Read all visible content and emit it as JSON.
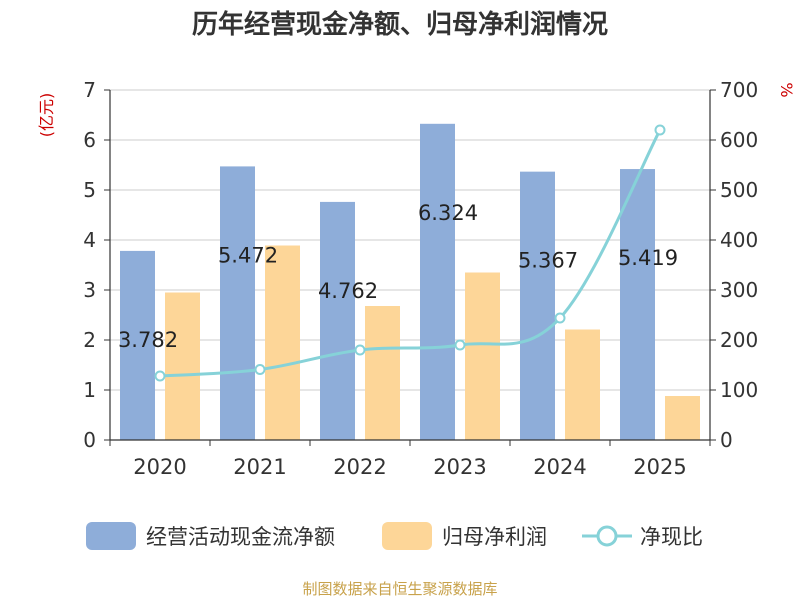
{
  "chart_data": {
    "type": "bar",
    "title": "历年经营现金净额、归母净利润情况",
    "categories": [
      "2020",
      "2021",
      "2022",
      "2023",
      "2024",
      "2025"
    ],
    "left_axis": {
      "label": "(亿元)",
      "ylim": [
        0,
        7
      ],
      "ticks": [
        "0",
        "1",
        "2",
        "3",
        "4",
        "5",
        "6",
        "7"
      ]
    },
    "right_axis": {
      "label": "%",
      "ylim": [
        0,
        700
      ],
      "ticks": [
        "0",
        "100",
        "200",
        "300",
        "400",
        "500",
        "600",
        "700"
      ]
    },
    "series": [
      {
        "name": "经营活动现金流净额",
        "type": "bar",
        "axis": "left",
        "color": "#8eadd9",
        "values": [
          3.782,
          5.472,
          4.762,
          6.324,
          5.367,
          5.419
        ],
        "labels": [
          "3.782",
          "5.472",
          "4.762",
          "6.324",
          "5.367",
          "5.419"
        ]
      },
      {
        "name": "归母净利润",
        "type": "bar",
        "axis": "left",
        "color": "#fdd698",
        "values": [
          2.95,
          3.89,
          2.68,
          3.35,
          2.21,
          0.88
        ]
      },
      {
        "name": "净现比",
        "type": "line",
        "axis": "right",
        "color": "#86d2d8",
        "values": [
          128,
          141,
          180,
          190,
          244,
          620
        ]
      }
    ],
    "grid": true,
    "legend_position": "bottom"
  },
  "footer": {
    "source": "制图数据来自恒生聚源数据库"
  }
}
